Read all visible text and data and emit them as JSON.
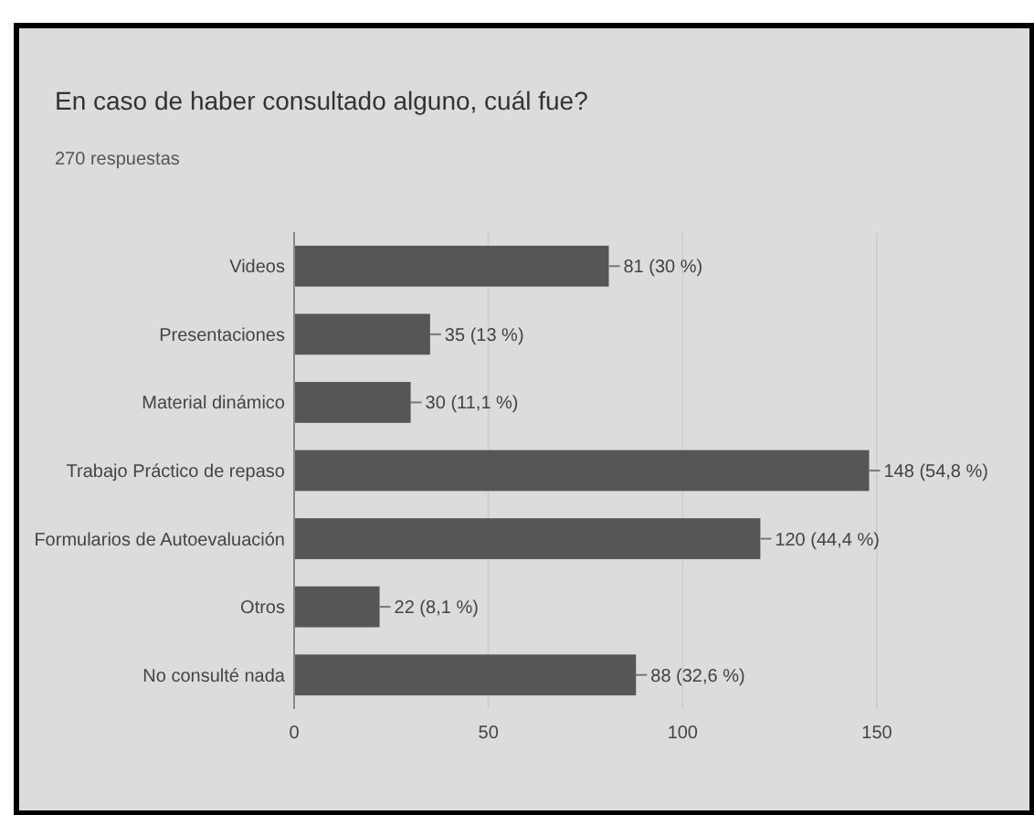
{
  "chart_data": {
    "type": "bar",
    "orientation": "horizontal",
    "title": "En caso de haber consultado alguno, cuál fue?",
    "subtitle": "270 respuestas",
    "categories": [
      "Videos",
      "Presentaciones",
      "Material dinámico",
      "Trabajo Práctico de repaso",
      "Formularios de Autoevaluación",
      "Otros",
      "No consulté nada"
    ],
    "values": [
      81,
      35,
      30,
      148,
      120,
      22,
      88
    ],
    "value_labels": [
      "81 (30 %)",
      "35 (13 %)",
      "30 (11,1 %)",
      "148 (54,8 %)",
      "120 (44,4 %)",
      "22 (8,1 %)",
      "88 (32,6 %)"
    ],
    "color": "#565656",
    "xlim": [
      0,
      150
    ],
    "xticks": [
      0,
      50,
      100,
      150
    ],
    "grid": "x"
  }
}
